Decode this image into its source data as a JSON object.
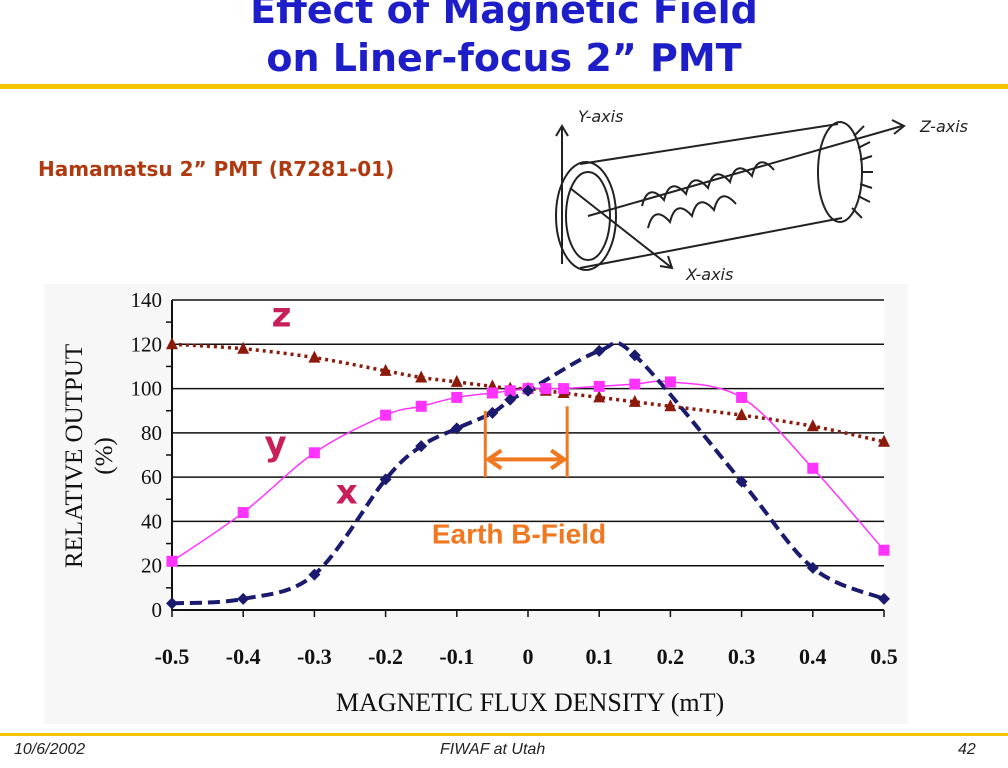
{
  "slide": {
    "title_line1": "Effect of Magnetic Field",
    "title_line2": "on Liner-focus 2” PMT",
    "subtitle": "Hamamatsu 2” PMT (R7281-01)",
    "footer_date": "10/6/2002",
    "footer_center": "FIWAF at Utah",
    "page_number": "42"
  },
  "diagram": {
    "y_axis_label": "Y-axis",
    "z_axis_label": "Z-axis",
    "x_axis_label": "X-axis"
  },
  "colors": {
    "title": "#1e1ec8",
    "rule": "#f5c400",
    "subtitle": "#b03a10",
    "series_x": "#1a1a6e",
    "series_y": "#ff33ff",
    "series_z": "#8b1a0a",
    "series_label": "#c81e5a",
    "annotation": "#f07820"
  },
  "chart_data": {
    "type": "line",
    "xlabel": "MAGNETIC FLUX DENSITY (mT)",
    "ylabel_line1": "RELATIVE OUTPUT",
    "ylabel_line2": "(%)",
    "xlim": [
      -0.5,
      0.5
    ],
    "ylim": [
      0,
      140
    ],
    "x_ticks": [
      "-0.5",
      "-0.4",
      "-0.3",
      "-0.2",
      "-0.1",
      "0",
      "0.1",
      "0.2",
      "0.3",
      "0.4",
      "0.5"
    ],
    "y_ticks": [
      "0",
      "20",
      "40",
      "60",
      "80",
      "100",
      "120",
      "140"
    ],
    "grid": "horizontal",
    "series": [
      {
        "name": "z",
        "marker": "triangle",
        "line": "dotted",
        "color": "#8b1a0a",
        "x": [
          -0.5,
          -0.4,
          -0.3,
          -0.2,
          -0.15,
          -0.1,
          -0.05,
          -0.025,
          0,
          0.025,
          0.05,
          0.1,
          0.15,
          0.2,
          0.3,
          0.4,
          0.5
        ],
        "y": [
          120,
          118,
          114,
          108,
          105,
          103,
          101,
          100,
          100,
          99,
          98,
          96,
          94,
          92,
          88,
          83,
          76
        ]
      },
      {
        "name": "y",
        "marker": "square",
        "line": "solid",
        "color": "#ff33ff",
        "x": [
          -0.5,
          -0.4,
          -0.3,
          -0.2,
          -0.15,
          -0.1,
          -0.05,
          -0.025,
          0,
          0.025,
          0.05,
          0.1,
          0.15,
          0.2,
          0.3,
          0.4,
          0.5
        ],
        "y": [
          22,
          44,
          71,
          88,
          92,
          96,
          98,
          99,
          100,
          100,
          100,
          101,
          102,
          103,
          96,
          64,
          27
        ]
      },
      {
        "name": "x",
        "marker": "diamond",
        "line": "dashed",
        "color": "#1a1a6e",
        "x": [
          -0.5,
          -0.4,
          -0.3,
          -0.2,
          -0.15,
          -0.1,
          -0.05,
          -0.025,
          0,
          0.1,
          0.15,
          0.3,
          0.4,
          0.5
        ],
        "y": [
          3,
          5,
          16,
          59,
          74,
          82,
          89,
          95,
          99,
          117,
          115,
          58,
          19,
          5
        ]
      }
    ],
    "annotation": {
      "text": "Earth B-Field",
      "x_from": -0.06,
      "x_to": 0.055,
      "y_arrow": 68
    }
  }
}
